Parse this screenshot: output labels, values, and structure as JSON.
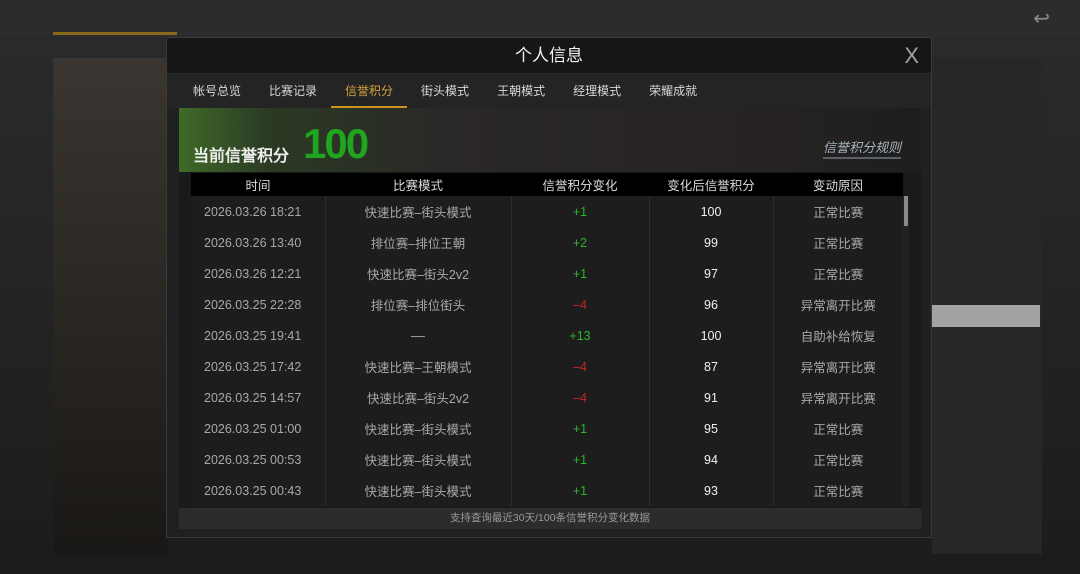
{
  "modal": {
    "title": "个人信息",
    "close": "X"
  },
  "tabs": [
    "帐号总览",
    "比赛记录",
    "信誉积分",
    "街头模式",
    "王朝模式",
    "经理模式",
    "荣耀成就"
  ],
  "active_tab": "信誉积分",
  "banner": {
    "label": "当前信誉积分",
    "score": "100",
    "rules_link": "信誉积分规则"
  },
  "table": {
    "headers": [
      "时间",
      "比赛模式",
      "信誉积分变化",
      "变化后信誉积分",
      "变动原因"
    ],
    "rows": [
      [
        "2026.03.26  18:21",
        "快速比赛–街头模式",
        "+1",
        "100",
        "正常比赛"
      ],
      [
        "2026.03.26  13:40",
        "排位赛–排位王朝",
        "+2",
        "99",
        "正常比赛"
      ],
      [
        "2026.03.26  12:21",
        "快速比赛–街头2v2",
        "+1",
        "97",
        "正常比赛"
      ],
      [
        "2026.03.25  22:28",
        "排位赛–排位街头",
        "–4",
        "96",
        "异常离开比赛"
      ],
      [
        "2026.03.25  19:41",
        "––",
        "+13",
        "100",
        "自助补给恢复"
      ],
      [
        "2026.03.25  17:42",
        "快速比赛–王朝模式",
        "–4",
        "87",
        "异常离开比赛"
      ],
      [
        "2026.03.25  14:57",
        "快速比赛–街头2v2",
        "–4",
        "91",
        "异常离开比赛"
      ],
      [
        "2026.03.25  01:00",
        "快速比赛–街头模式",
        "+1",
        "95",
        "正常比赛"
      ],
      [
        "2026.03.25  00:53",
        "快速比赛–街头模式",
        "+1",
        "94",
        "正常比赛"
      ],
      [
        "2026.03.25  00:43",
        "快速比赛–街头模式",
        "+1",
        "93",
        "正常比赛"
      ]
    ]
  },
  "footer": "支持查询最近30天/100条信誉积分变化数据",
  "colors": {
    "accent": "#c8961f",
    "positive": "#2db42d",
    "negative": "#c02626",
    "score": "#1fa51f"
  }
}
